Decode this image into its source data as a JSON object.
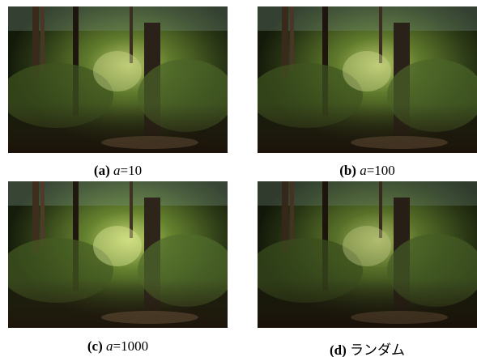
{
  "panels": [
    {
      "label": "(a)",
      "variable": "a",
      "text": "=10"
    },
    {
      "label": "(b)",
      "variable": "a",
      "text": "=100"
    },
    {
      "label": "(c)",
      "variable": "a",
      "text": "=1000"
    },
    {
      "label": "(d)",
      "text": "ランダム"
    }
  ]
}
